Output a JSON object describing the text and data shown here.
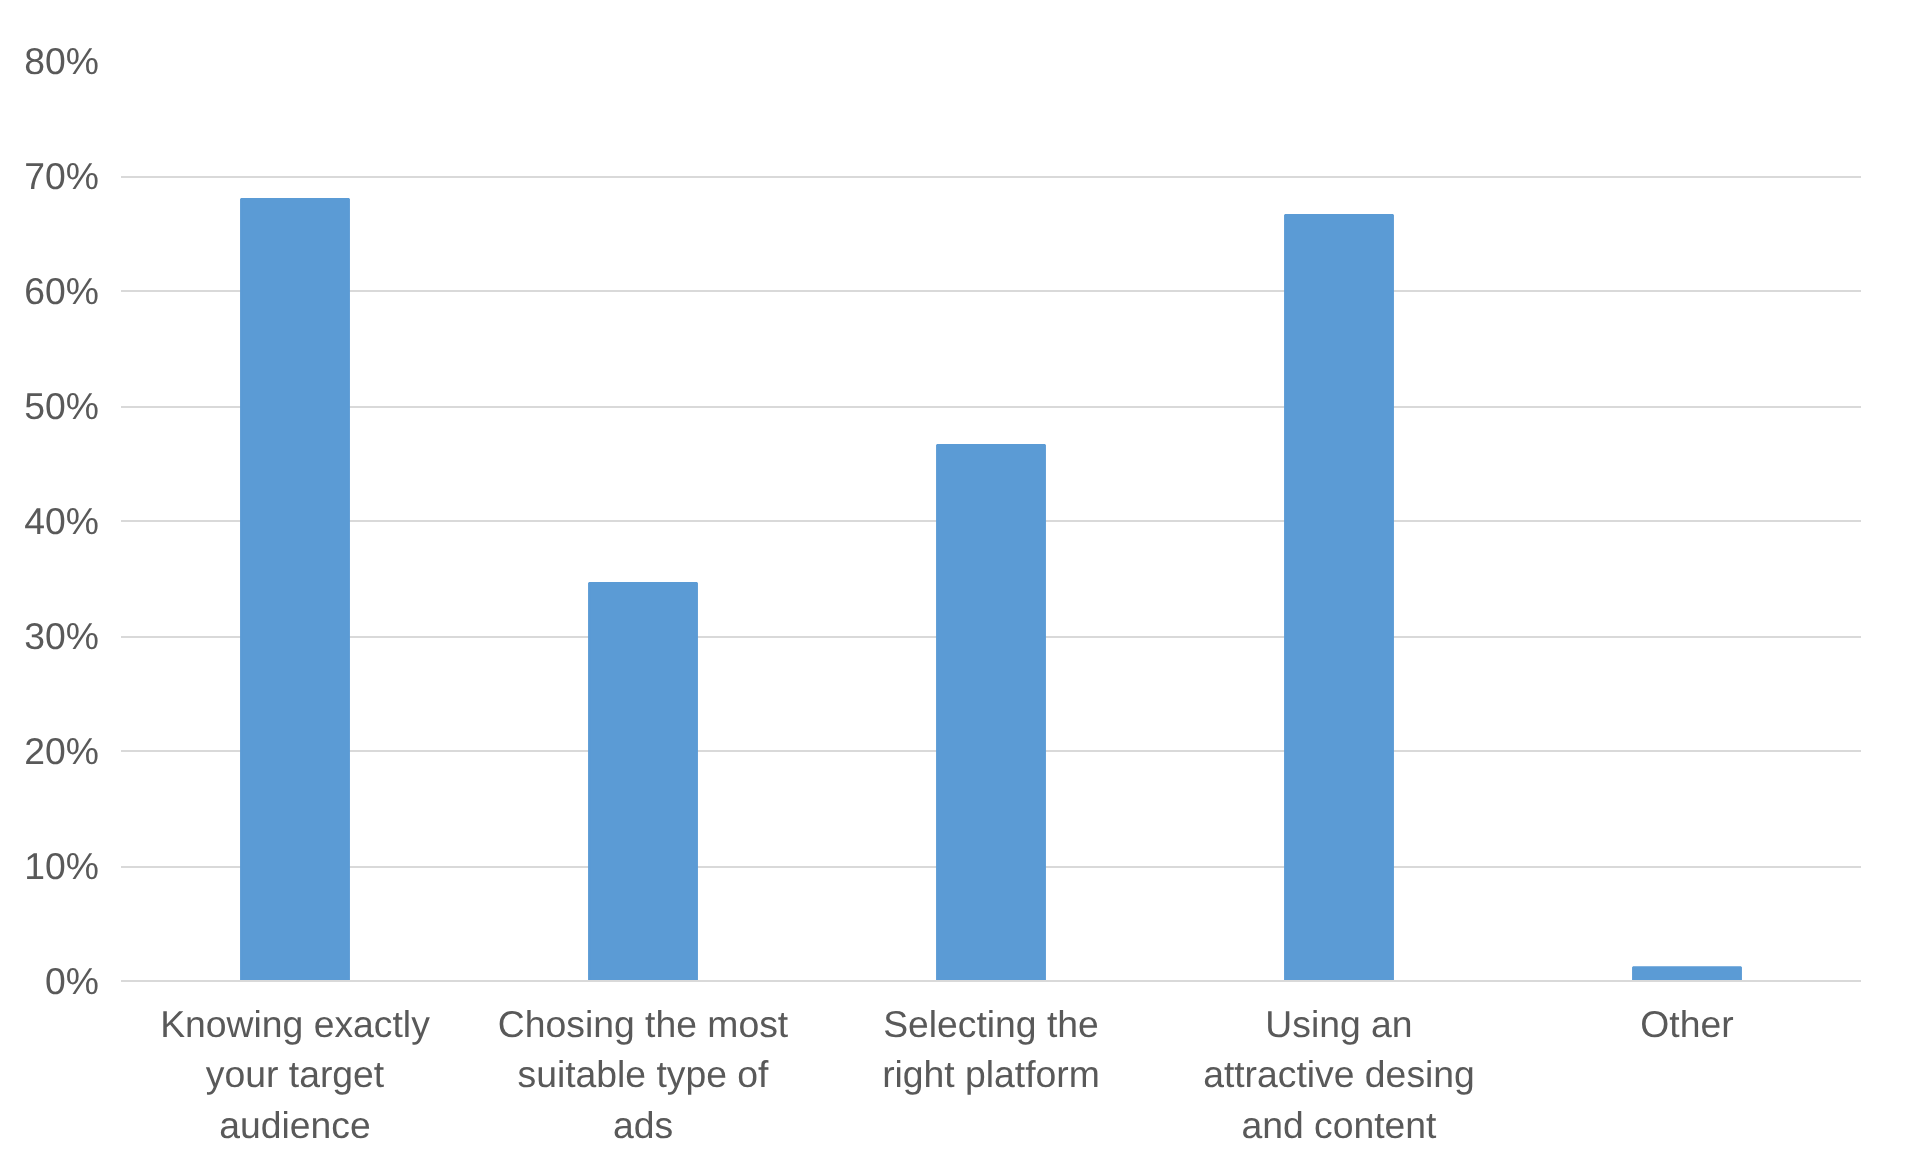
{
  "chart_data": {
    "type": "bar",
    "categories": [
      "Knowing exactly your target audience",
      "Chosing the most suitable type of ads",
      "Selecting the right platform",
      "Using an attractive desing and content",
      "Other"
    ],
    "values": [
      68,
      34.6,
      46.6,
      66.6,
      1.2
    ],
    "color": "#5b9bd5",
    "ylim": [
      0,
      80
    ],
    "yticks": [
      {
        "value": 0,
        "label": "0%"
      },
      {
        "value": 10,
        "label": "10%"
      },
      {
        "value": 20,
        "label": "20%"
      },
      {
        "value": 30,
        "label": "30%"
      },
      {
        "value": 40,
        "label": "40%"
      },
      {
        "value": 50,
        "label": "50%"
      },
      {
        "value": 60,
        "label": "60%"
      },
      {
        "value": 70,
        "label": "70%"
      },
      {
        "value": 80,
        "label": "80%"
      }
    ],
    "grid": "y"
  }
}
